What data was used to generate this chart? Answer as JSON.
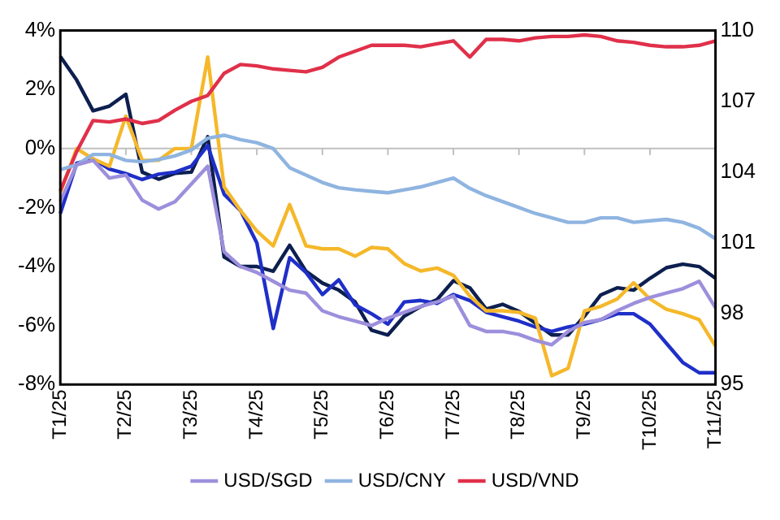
{
  "chart_data": {
    "type": "line",
    "categories": [
      "T1/25",
      null,
      null,
      null,
      "T2/25",
      null,
      null,
      null,
      "T3/25",
      null,
      null,
      null,
      "T4/25",
      null,
      null,
      null,
      "T5/25",
      null,
      null,
      null,
      "T6/25",
      null,
      null,
      null,
      "T7/25",
      null,
      null,
      null,
      "T8/25",
      null,
      null,
      null,
      "T9/25",
      null,
      null,
      null,
      "T10/25",
      null,
      null,
      null,
      "T11/25"
    ],
    "ylim": [
      -8,
      4
    ],
    "yticks": [
      {
        "value": -8,
        "label": "-8%"
      },
      {
        "value": -6,
        "label": "-6%"
      },
      {
        "value": -4,
        "label": "-4%"
      },
      {
        "value": -2,
        "label": "-2%"
      },
      {
        "value": 0,
        "label": "0%"
      },
      {
        "value": 2,
        "label": "2%"
      },
      {
        "value": 4,
        "label": "4%"
      }
    ],
    "y2lim": [
      95,
      110
    ],
    "y2ticks": [
      95,
      98,
      101,
      104,
      107,
      110
    ],
    "legend": "bottom",
    "marker": "none",
    "line_style": "solid",
    "ref_lines": [
      {
        "axis": "y",
        "value": 0,
        "color": "#bfbfbf"
      }
    ],
    "series": [
      {
        "name": "USD/SGD",
        "color": "#9d8fdc",
        "values": [
          -1.8,
          -0.55,
          -0.4,
          -1.0,
          -0.9,
          -1.75,
          -2.05,
          -1.8,
          -1.2,
          -0.6,
          -3.5,
          -4.0,
          -4.2,
          -4.5,
          -4.8,
          -4.9,
          -5.5,
          -5.7,
          -5.85,
          -6.0,
          -5.75,
          -5.55,
          -5.35,
          -5.2,
          -5.0,
          -6.0,
          -6.2,
          -6.2,
          -6.3,
          -6.5,
          -6.65,
          -6.2,
          -5.9,
          -5.8,
          -5.5,
          -5.25,
          -5.05,
          -4.9,
          -4.75,
          -4.5,
          -5.4
        ]
      },
      {
        "name": "USD/CNY",
        "color": "#8fb4e0",
        "values": [
          -0.72,
          -0.55,
          -0.2,
          -0.2,
          -0.4,
          -0.45,
          -0.37,
          -0.25,
          -0.05,
          0.35,
          0.45,
          0.3,
          0.2,
          0.0,
          -0.65,
          -0.9,
          -1.15,
          -1.33,
          -1.4,
          -1.45,
          -1.5,
          -1.4,
          -1.3,
          -1.15,
          -1.0,
          -1.35,
          -1.6,
          -1.8,
          -2.0,
          -2.2,
          -2.35,
          -2.5,
          -2.5,
          -2.35,
          -2.35,
          -2.5,
          -2.45,
          -2.4,
          -2.5,
          -2.7,
          -3.06
        ]
      },
      {
        "name": "USD/VND",
        "color": "#e0304a",
        "values": [
          -1.43,
          -0.1,
          0.95,
          0.9,
          1.0,
          0.85,
          0.95,
          1.3,
          1.6,
          1.8,
          2.55,
          2.85,
          2.8,
          2.7,
          2.65,
          2.6,
          2.75,
          3.1,
          3.3,
          3.5,
          3.5,
          3.5,
          3.45,
          3.55,
          3.65,
          3.1,
          3.7,
          3.7,
          3.65,
          3.75,
          3.8,
          3.8,
          3.85,
          3.8,
          3.65,
          3.6,
          3.5,
          3.45,
          3.45,
          3.5,
          3.65
        ]
      },
      {
        "color": "#f5b82a",
        "values": [
          -1.5,
          0,
          -0.35,
          -0.6,
          1.1,
          -0.4,
          -0.4,
          0.0,
          0.0,
          3.1,
          -1.3,
          -2.1,
          -2.8,
          -3.3,
          -1.9,
          -3.3,
          -3.4,
          -3.4,
          -3.65,
          -3.35,
          -3.4,
          -3.9,
          -4.15,
          -4.05,
          -4.3,
          -5.0,
          -5.5,
          -5.5,
          -5.55,
          -5.75,
          -7.7,
          -7.45,
          -5.5,
          -5.35,
          -5.1,
          -4.55,
          -5.1,
          -5.45,
          -5.6,
          -5.8,
          -6.7
        ]
      },
      {
        "color": "#1f2fc8",
        "values": [
          -2.2,
          -0.5,
          -0.35,
          -0.7,
          -0.85,
          -1.05,
          -0.87,
          -0.8,
          -0.6,
          0.1,
          -1.55,
          -2.1,
          -3.2,
          -6.1,
          -3.7,
          -4.2,
          -4.95,
          -4.45,
          -5.3,
          -5.6,
          -5.95,
          -5.2,
          -5.15,
          -5.25,
          -4.95,
          -5.15,
          -5.55,
          -5.7,
          -5.85,
          -6.05,
          -6.2,
          -6.05,
          -5.95,
          -5.8,
          -5.6,
          -5.6,
          -5.95,
          -6.6,
          -7.25,
          -7.6,
          -7.6
        ]
      },
      {
        "color": "#0d1f4f",
        "axis": "y2",
        "values": [
          108.9,
          107.9,
          106.6,
          106.8,
          107.3,
          104.0,
          103.7,
          103.95,
          104.0,
          105.5,
          100.4,
          100.0,
          100.0,
          99.8,
          100.9,
          99.8,
          99.3,
          99.0,
          98.5,
          97.3,
          97.1,
          97.9,
          98.3,
          98.6,
          99.4,
          99.1,
          98.2,
          98.4,
          98.1,
          97.6,
          97.1,
          97.1,
          97.9,
          98.8,
          99.1,
          99.0,
          99.5,
          99.95,
          100.1,
          100.0,
          99.5
        ]
      }
    ]
  }
}
